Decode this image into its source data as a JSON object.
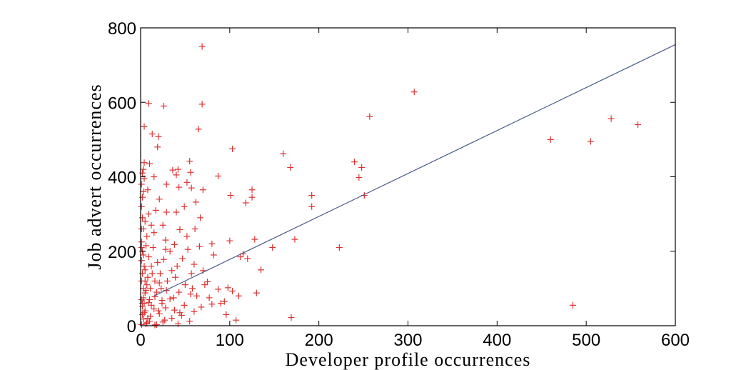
{
  "chart_data": {
    "type": "scatter",
    "title": "",
    "xlabel": "Developer profile occurrences",
    "ylabel": "Job advert occurrences",
    "xlim": [
      0,
      600
    ],
    "ylim": [
      0,
      800
    ],
    "xticks": [
      0,
      100,
      200,
      300,
      400,
      500,
      600
    ],
    "yticks": [
      0,
      200,
      400,
      600,
      800
    ],
    "grid": false,
    "legend": "none",
    "marker_color": "#e03030",
    "line_color": "#4a5a8a",
    "series": [
      {
        "type": "scatter",
        "marker": "+",
        "points": [
          [
            69,
            750
          ],
          [
            307,
            628
          ],
          [
            9,
            597
          ],
          [
            69,
            595
          ],
          [
            26,
            590
          ],
          [
            257,
            562
          ],
          [
            528,
            556
          ],
          [
            558,
            540
          ],
          [
            4,
            535
          ],
          [
            65,
            528
          ],
          [
            460,
            500
          ],
          [
            505,
            495
          ],
          [
            13,
            515
          ],
          [
            20,
            508
          ],
          [
            103,
            475
          ],
          [
            19,
            480
          ],
          [
            160,
            462
          ],
          [
            55,
            442
          ],
          [
            240,
            440
          ],
          [
            4,
            438
          ],
          [
            10,
            435
          ],
          [
            168,
            425
          ],
          [
            248,
            425
          ],
          [
            42,
            420
          ],
          [
            36,
            418
          ],
          [
            56,
            412
          ],
          [
            2,
            410
          ],
          [
            40,
            405
          ],
          [
            87,
            402
          ],
          [
            15,
            400
          ],
          [
            245,
            398
          ],
          [
            4,
            395
          ],
          [
            52,
            385
          ],
          [
            29,
            380
          ],
          [
            8,
            365
          ],
          [
            43,
            372
          ],
          [
            57,
            370
          ],
          [
            70,
            365
          ],
          [
            125,
            365
          ],
          [
            3,
            360
          ],
          [
            101,
            350
          ],
          [
            192,
            350
          ],
          [
            251,
            350
          ],
          [
            125,
            345
          ],
          [
            21,
            340
          ],
          [
            118,
            330
          ],
          [
            62,
            332
          ],
          [
            192,
            320
          ],
          [
            49,
            320
          ],
          [
            17,
            310
          ],
          [
            40,
            305
          ],
          [
            29,
            305
          ],
          [
            9,
            300
          ],
          [
            67,
            290
          ],
          [
            5,
            280
          ],
          [
            25,
            270
          ],
          [
            12,
            270
          ],
          [
            3,
            260
          ],
          [
            44,
            258
          ],
          [
            15,
            250
          ],
          [
            7,
            240
          ],
          [
            128,
            232
          ],
          [
            173,
            232
          ],
          [
            28,
            230
          ],
          [
            100,
            228
          ],
          [
            80,
            220
          ],
          [
            38,
            218
          ],
          [
            6,
            215
          ],
          [
            66,
            213
          ],
          [
            1,
            210
          ],
          [
            148,
            210
          ],
          [
            223,
            210
          ],
          [
            28,
            205
          ],
          [
            53,
            205
          ],
          [
            115,
            193
          ],
          [
            3,
            190
          ],
          [
            112,
            185
          ],
          [
            26,
            178
          ],
          [
            19,
            170
          ],
          [
            60,
            165
          ],
          [
            41,
            160
          ],
          [
            5,
            150
          ],
          [
            35,
            148
          ],
          [
            70,
            148
          ],
          [
            57,
            140
          ],
          [
            39,
            130
          ],
          [
            75,
            118
          ],
          [
            21,
            115
          ],
          [
            50,
            110
          ],
          [
            11,
            100
          ],
          [
            98,
            102
          ],
          [
            87,
            98
          ],
          [
            29,
            95
          ],
          [
            103,
            93
          ],
          [
            43,
            90
          ],
          [
            130,
            88
          ],
          [
            5,
            88
          ],
          [
            56,
            85
          ],
          [
            63,
            80
          ],
          [
            16,
            78
          ],
          [
            77,
            75
          ],
          [
            33,
            72
          ],
          [
            24,
            68
          ],
          [
            94,
            65
          ],
          [
            9,
            62
          ],
          [
            80,
            58
          ],
          [
            49,
            55
          ],
          [
            2,
            52
          ],
          [
            68,
            50
          ],
          [
            28,
            48
          ],
          [
            15,
            45
          ],
          [
            38,
            42
          ],
          [
            60,
            38
          ],
          [
            4,
            35
          ],
          [
            21,
            32
          ],
          [
            46,
            28
          ],
          [
            11,
            25
          ],
          [
            169,
            22
          ],
          [
            35,
            20
          ],
          [
            3,
            18
          ],
          [
            107,
            15
          ],
          [
            55,
            12
          ],
          [
            25,
            10
          ],
          [
            7,
            8
          ],
          [
            42,
            5
          ],
          [
            1,
            3
          ],
          [
            16,
            2
          ],
          [
            485,
            55
          ],
          [
            1,
            120
          ],
          [
            2,
            140
          ],
          [
            1,
            175
          ],
          [
            2,
            200
          ],
          [
            1,
            225
          ],
          [
            2,
            290
          ],
          [
            1,
            320
          ],
          [
            2,
            345
          ],
          [
            1,
            380
          ],
          [
            3,
            420
          ],
          [
            4,
            60
          ],
          [
            3,
            75
          ],
          [
            6,
            95
          ],
          [
            7,
            110
          ],
          [
            8,
            130
          ],
          [
            4,
            160
          ],
          [
            9,
            185
          ],
          [
            2,
            60
          ],
          [
            5,
            40
          ],
          [
            8,
            20
          ],
          [
            12,
            55
          ],
          [
            13,
            140
          ],
          [
            14,
            210
          ],
          [
            18,
            90
          ],
          [
            22,
            140
          ],
          [
            24,
            60
          ],
          [
            30,
            120
          ],
          [
            33,
            200
          ],
          [
            37,
            75
          ],
          [
            44,
            35
          ],
          [
            47,
            180
          ],
          [
            52,
            240
          ],
          [
            58,
            100
          ],
          [
            61,
            260
          ],
          [
            72,
            110
          ],
          [
            82,
            190
          ],
          [
            90,
            60
          ],
          [
            96,
            30
          ],
          [
            110,
            80
          ],
          [
            120,
            180
          ],
          [
            135,
            150
          ],
          [
            6,
            5
          ],
          [
            10,
            12
          ],
          [
            18,
            3
          ],
          [
            27,
            15
          ],
          [
            3,
            100
          ],
          [
            1,
            260
          ],
          [
            2,
            30
          ],
          [
            1,
            70
          ],
          [
            5,
            120
          ],
          [
            10,
            70
          ],
          [
            12,
            160
          ],
          [
            16,
            120
          ],
          [
            20,
            40
          ],
          [
            23,
            100
          ]
        ]
      },
      {
        "type": "line",
        "x": [
          15,
          600
        ],
        "y": [
          80,
          755
        ]
      }
    ]
  }
}
